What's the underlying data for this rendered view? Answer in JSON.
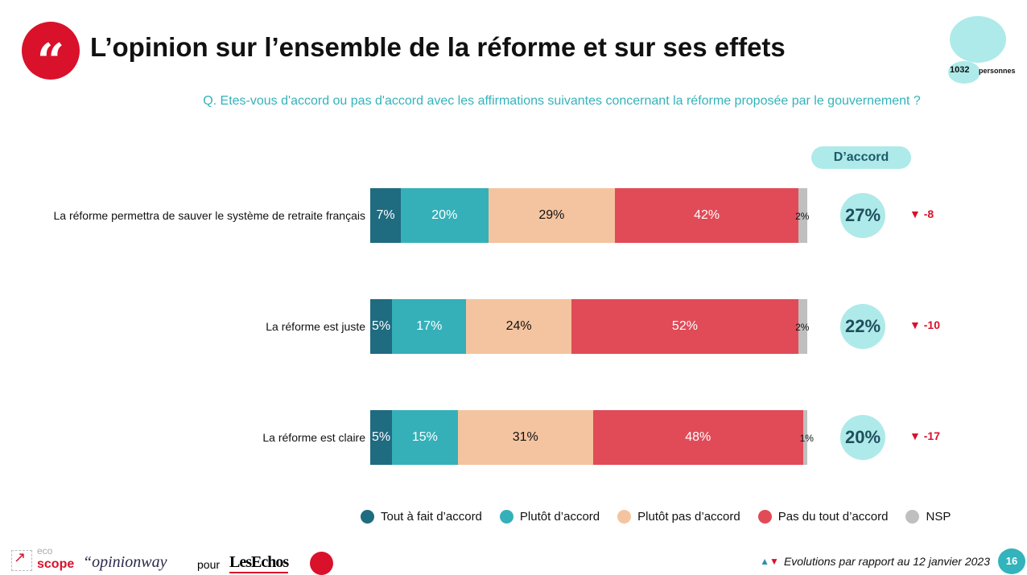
{
  "header": {
    "title": "L’opinion sur l’ensemble de la réforme et sur ses effets",
    "question": "Q. Etes-vous d'accord ou pas d'accord avec les affirmations suivantes concernant la réforme proposée par le gouvernement ?",
    "sample_n": "1032",
    "sample_label": "personnes"
  },
  "chart_data": {
    "type": "bar",
    "stacked": true,
    "orientation": "horizontal",
    "categories": [
      "La réforme permettra de sauver le système de retraite français",
      "La réforme est juste",
      "La réforme est claire"
    ],
    "series": [
      {
        "name": "Tout à fait d’accord",
        "color": "#1f6b80",
        "values": [
          7,
          5,
          5
        ]
      },
      {
        "name": "Plutôt d’accord",
        "color": "#35b0b8",
        "values": [
          20,
          17,
          15
        ]
      },
      {
        "name": "Plutôt pas d’accord",
        "color": "#f4c4a0",
        "values": [
          29,
          24,
          31
        ]
      },
      {
        "name": "Pas du tout d’accord",
        "color": "#e04b57",
        "values": [
          42,
          52,
          48
        ]
      },
      {
        "name": "NSP",
        "color": "#bfbfbf",
        "values": [
          2,
          2,
          1
        ]
      }
    ],
    "agree_header": "D’accord",
    "agree_totals": [
      "27%",
      "22%",
      "20%"
    ],
    "evolutions": [
      "-8",
      "-10",
      "-17"
    ],
    "evolution_direction": [
      "down",
      "down",
      "down"
    ],
    "legend_placement": "bottom"
  },
  "footer": {
    "brand1_top": "eco",
    "brand1_bottom": "scope",
    "brand2": "“opinionway",
    "pour": "pour",
    "brand3": "LesEchos",
    "evolution_note": "Evolutions par rapport au 12 janvier 2023",
    "page": "16"
  }
}
